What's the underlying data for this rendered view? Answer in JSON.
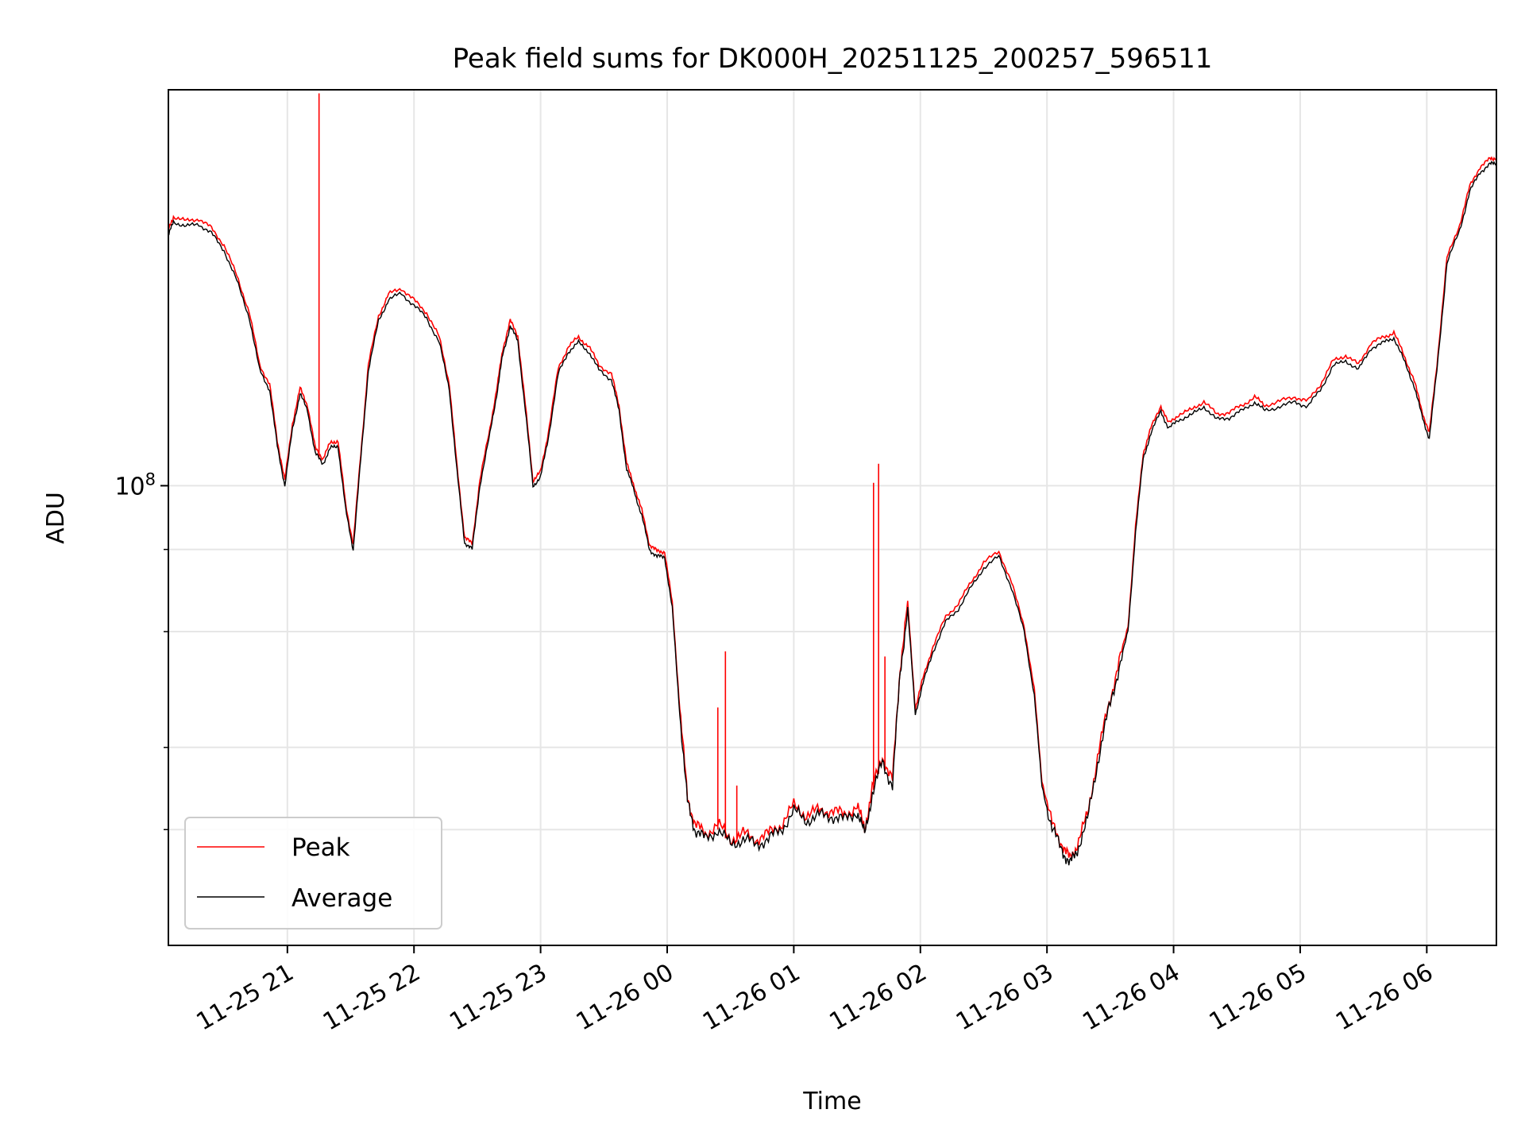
{
  "chart_data": {
    "type": "line",
    "title": "Peak field sums for DK000H_20251125_200257_596511",
    "xlabel": "Time",
    "ylabel": "ADU",
    "y_scale": "log",
    "ylim": [
      20000000,
      400000000
    ],
    "y_major_ticks": [
      {
        "value": 100000000,
        "base": "10",
        "exp": "8"
      }
    ],
    "y_minor_ticks": [
      30000000,
      40000000,
      60000000,
      80000000
    ],
    "xlim_hours": [
      20.06,
      30.55
    ],
    "x_ticks": [
      {
        "hour": 21,
        "label": "11-25 21"
      },
      {
        "hour": 22,
        "label": "11-25 22"
      },
      {
        "hour": 23,
        "label": "11-25 23"
      },
      {
        "hour": 24,
        "label": "11-26 00"
      },
      {
        "hour": 25,
        "label": "11-26 01"
      },
      {
        "hour": 26,
        "label": "11-26 02"
      },
      {
        "hour": 27,
        "label": "11-26 03"
      },
      {
        "hour": 28,
        "label": "11-26 04"
      },
      {
        "hour": 29,
        "label": "11-26 05"
      },
      {
        "hour": 30,
        "label": "11-26 06"
      }
    ],
    "grid": true,
    "legend_position": "bottom-left",
    "series": [
      {
        "name": "Peak",
        "color": "#ff0000"
      },
      {
        "name": "Average",
        "color": "#000000"
      }
    ],
    "average_series": [
      [
        20.06,
        240000000
      ],
      [
        20.1,
        252000000
      ],
      [
        20.2,
        248000000
      ],
      [
        20.3,
        250000000
      ],
      [
        20.4,
        242000000
      ],
      [
        20.5,
        228000000
      ],
      [
        20.6,
        205000000
      ],
      [
        20.7,
        180000000
      ],
      [
        20.78,
        150000000
      ],
      [
        20.86,
        140000000
      ],
      [
        20.92,
        115000000
      ],
      [
        20.98,
        100000000
      ],
      [
        21.04,
        122000000
      ],
      [
        21.1,
        138000000
      ],
      [
        21.16,
        130000000
      ],
      [
        21.22,
        112000000
      ],
      [
        21.28,
        108000000
      ],
      [
        21.34,
        114000000
      ],
      [
        21.4,
        115000000
      ],
      [
        21.46,
        92000000
      ],
      [
        21.52,
        80000000
      ],
      [
        21.58,
        110000000
      ],
      [
        21.64,
        150000000
      ],
      [
        21.72,
        178000000
      ],
      [
        21.8,
        192000000
      ],
      [
        21.9,
        196000000
      ],
      [
        22.0,
        188000000
      ],
      [
        22.1,
        180000000
      ],
      [
        22.2,
        165000000
      ],
      [
        22.28,
        140000000
      ],
      [
        22.34,
        105000000
      ],
      [
        22.4,
        82000000
      ],
      [
        22.46,
        80000000
      ],
      [
        22.52,
        100000000
      ],
      [
        22.6,
        120000000
      ],
      [
        22.66,
        140000000
      ],
      [
        22.7,
        158000000
      ],
      [
        22.76,
        175000000
      ],
      [
        22.82,
        166000000
      ],
      [
        22.88,
        130000000
      ],
      [
        22.94,
        100000000
      ],
      [
        23.0,
        103000000
      ],
      [
        23.06,
        118000000
      ],
      [
        23.14,
        148000000
      ],
      [
        23.22,
        160000000
      ],
      [
        23.3,
        165000000
      ],
      [
        23.38,
        160000000
      ],
      [
        23.46,
        150000000
      ],
      [
        23.56,
        145000000
      ],
      [
        23.62,
        130000000
      ],
      [
        23.68,
        106000000
      ],
      [
        23.74,
        98000000
      ],
      [
        23.8,
        90000000
      ],
      [
        23.86,
        80000000
      ],
      [
        23.92,
        78000000
      ],
      [
        23.98,
        78000000
      ],
      [
        24.04,
        65000000
      ],
      [
        24.1,
        45000000
      ],
      [
        24.16,
        33000000
      ],
      [
        24.22,
        30000000
      ],
      [
        24.3,
        29000000
      ],
      [
        24.4,
        30000000
      ],
      [
        24.5,
        28500000
      ],
      [
        24.6,
        29000000
      ],
      [
        24.7,
        28500000
      ],
      [
        24.8,
        29000000
      ],
      [
        24.9,
        30000000
      ],
      [
        25.0,
        32000000
      ],
      [
        25.1,
        31000000
      ],
      [
        25.2,
        31500000
      ],
      [
        25.3,
        31500000
      ],
      [
        25.4,
        31000000
      ],
      [
        25.5,
        32000000
      ],
      [
        25.56,
        29500000
      ],
      [
        25.62,
        34000000
      ],
      [
        25.7,
        38000000
      ],
      [
        25.78,
        35000000
      ],
      [
        25.84,
        52000000
      ],
      [
        25.9,
        65000000
      ],
      [
        25.96,
        45000000
      ],
      [
        26.02,
        50000000
      ],
      [
        26.1,
        56000000
      ],
      [
        26.2,
        62000000
      ],
      [
        26.3,
        65000000
      ],
      [
        26.4,
        70000000
      ],
      [
        26.5,
        75000000
      ],
      [
        26.62,
        78000000
      ],
      [
        26.72,
        70000000
      ],
      [
        26.82,
        60000000
      ],
      [
        26.9,
        48000000
      ],
      [
        26.96,
        35000000
      ],
      [
        27.04,
        30000000
      ],
      [
        27.12,
        28000000
      ],
      [
        27.18,
        26500000
      ],
      [
        27.24,
        28000000
      ],
      [
        27.32,
        31000000
      ],
      [
        27.4,
        38000000
      ],
      [
        27.48,
        45000000
      ],
      [
        27.56,
        52000000
      ],
      [
        27.64,
        60000000
      ],
      [
        27.7,
        85000000
      ],
      [
        27.76,
        110000000
      ],
      [
        27.82,
        120000000
      ],
      [
        27.9,
        130000000
      ],
      [
        27.96,
        122000000
      ],
      [
        28.04,
        126000000
      ],
      [
        28.14,
        128000000
      ],
      [
        28.24,
        132000000
      ],
      [
        28.34,
        126000000
      ],
      [
        28.44,
        127000000
      ],
      [
        28.54,
        130000000
      ],
      [
        28.64,
        134000000
      ],
      [
        28.72,
        130000000
      ],
      [
        28.84,
        132000000
      ],
      [
        28.96,
        134000000
      ],
      [
        29.06,
        132000000
      ],
      [
        29.16,
        140000000
      ],
      [
        29.26,
        152000000
      ],
      [
        29.36,
        155000000
      ],
      [
        29.46,
        150000000
      ],
      [
        29.56,
        162000000
      ],
      [
        29.66,
        165000000
      ],
      [
        29.74,
        168000000
      ],
      [
        29.82,
        155000000
      ],
      [
        29.9,
        142000000
      ],
      [
        29.96,
        128000000
      ],
      [
        30.02,
        118000000
      ],
      [
        30.08,
        150000000
      ],
      [
        30.16,
        218000000
      ],
      [
        30.26,
        245000000
      ],
      [
        30.34,
        280000000
      ],
      [
        30.42,
        300000000
      ],
      [
        30.5,
        308000000
      ],
      [
        30.55,
        310000000
      ]
    ],
    "peak_spikes": [
      {
        "hour": 21.25,
        "value": 395000000
      },
      {
        "hour": 24.46,
        "value": 56000000
      },
      {
        "hour": 24.4,
        "value": 46000000
      },
      {
        "hour": 24.55,
        "value": 35000000
      },
      {
        "hour": 25.63,
        "value": 101000000
      },
      {
        "hour": 25.67,
        "value": 108000000
      },
      {
        "hour": 25.72,
        "value": 55000000
      }
    ]
  }
}
